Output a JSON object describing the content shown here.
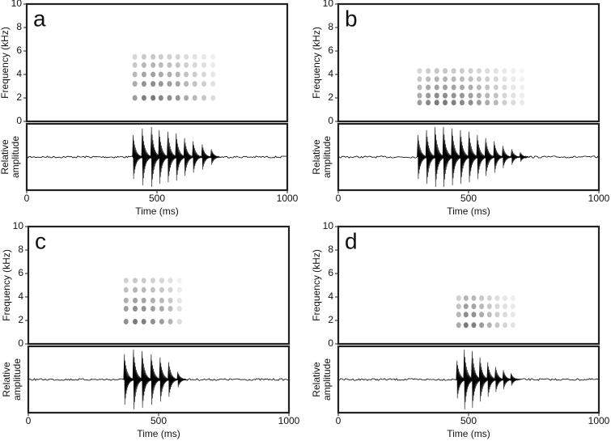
{
  "chart_data": [
    {
      "type": "spectrogram",
      "label": "a",
      "ylabel": "Frequency (kHz)",
      "ylim": [
        0,
        10
      ],
      "yticks": [
        0,
        2,
        4,
        6,
        8,
        10
      ],
      "amplitude_label": [
        "Relative",
        "amplitude"
      ],
      "xlabel": "Time (ms)",
      "xlim": [
        0,
        1000
      ],
      "xticks": [
        0,
        500,
        1000
      ],
      "pulses": [
        415,
        450,
        485,
        515,
        548,
        580,
        612,
        645,
        680,
        715
      ],
      "pulse_amplitudes": [
        0.7,
        0.9,
        0.95,
        0.85,
        0.8,
        0.75,
        0.6,
        0.5,
        0.4,
        0.25
      ],
      "harmonics": [
        2,
        3.2,
        4,
        4.8,
        5.5
      ],
      "color": "#000000"
    },
    {
      "type": "spectrogram",
      "label": "b",
      "ylabel": "Frequency (kHz)",
      "ylim": [
        0,
        10
      ],
      "yticks": [
        0,
        2,
        4,
        6,
        8,
        10
      ],
      "amplitude_label": [
        "Relative",
        "amplitude"
      ],
      "xlabel": "Time (ms)",
      "xlim": [
        0,
        1000
      ],
      "xticks": [
        0,
        500,
        1000
      ],
      "pulses": [
        312,
        345,
        378,
        410,
        443,
        475,
        508,
        540,
        572,
        605,
        638,
        672,
        705
      ],
      "pulse_amplitudes": [
        0.7,
        0.85,
        0.95,
        0.95,
        0.9,
        0.85,
        0.8,
        0.7,
        0.6,
        0.5,
        0.35,
        0.25,
        0.15
      ],
      "harmonics": [
        1.6,
        2.2,
        2.9,
        3.6,
        4.3
      ],
      "color": "#000000"
    },
    {
      "type": "spectrogram",
      "label": "c",
      "ylabel": "Frequency (kHz)",
      "ylim": [
        0,
        10
      ],
      "yticks": [
        0,
        2,
        4,
        6,
        8,
        10
      ],
      "amplitude_label": [
        "Relative",
        "amplitude"
      ],
      "xlabel": "Time (ms)",
      "xlim": [
        0,
        1000
      ],
      "xticks": [
        0,
        500,
        1000
      ],
      "pulses": [
        375,
        410,
        443,
        478,
        512,
        545,
        580
      ],
      "pulse_amplitudes": [
        0.8,
        0.95,
        0.9,
        0.8,
        0.7,
        0.55,
        0.25
      ],
      "harmonics": [
        1.9,
        3,
        3.7,
        4.6,
        5.4
      ],
      "color": "#000000"
    },
    {
      "type": "spectrogram",
      "label": "d",
      "ylabel": "Frequency (kHz)",
      "ylim": [
        0,
        10
      ],
      "yticks": [
        0,
        2,
        4,
        6,
        8,
        10
      ],
      "amplitude_label": [
        "Relative",
        "amplitude"
      ],
      "xlabel": "Time (ms)",
      "xlim": [
        0,
        1000
      ],
      "xticks": [
        0,
        500,
        1000
      ],
      "pulses": [
        462,
        490,
        520,
        550,
        580,
        610,
        640,
        670
      ],
      "pulse_amplitudes": [
        0.6,
        0.95,
        0.9,
        0.7,
        0.55,
        0.4,
        0.3,
        0.2
      ],
      "harmonics": [
        1.6,
        2.5,
        3.2,
        3.9
      ],
      "color": "#000000"
    }
  ]
}
